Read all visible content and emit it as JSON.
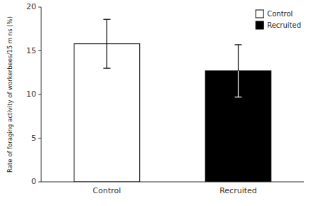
{
  "chart_data": {
    "type": "bar",
    "categories": [
      "Control",
      "Recruited"
    ],
    "values": [
      15.8,
      12.7
    ],
    "errors": [
      2.8,
      3.0
    ],
    "colors": [
      "white",
      "black"
    ],
    "ylabel": "Rate of foraging activity of workerbees/15 m ns (%)",
    "ylim": [
      0,
      20
    ],
    "yticks": [
      0,
      5,
      10,
      15,
      20
    ],
    "grid": false,
    "legend": "upper right"
  }
}
